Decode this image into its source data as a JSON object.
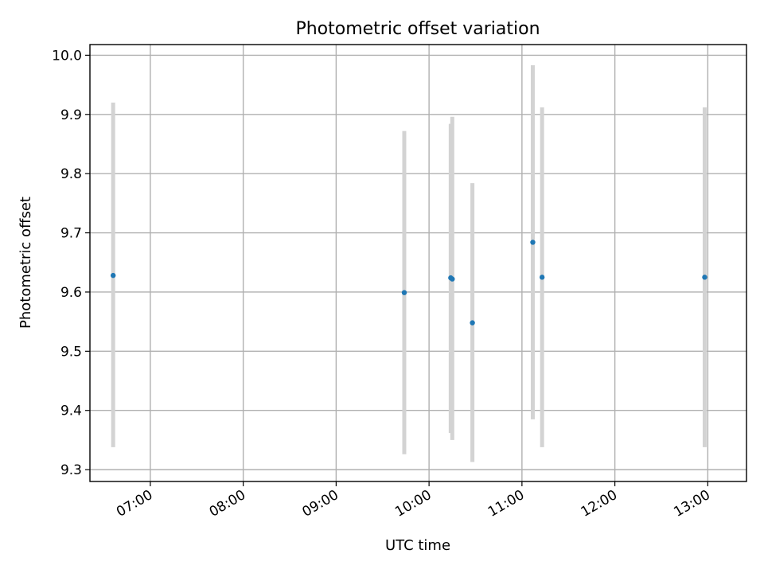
{
  "chart_data": {
    "type": "scatter",
    "title": "Photometric offset variation",
    "xlabel": "UTC time",
    "ylabel": "Photometric offset",
    "x_axis_kind": "time",
    "xlim": [
      "06:21",
      "13:25"
    ],
    "ylim": [
      9.28,
      10.018
    ],
    "grid": true,
    "x_ticks": [
      "07:00",
      "08:00",
      "09:00",
      "10:00",
      "11:00",
      "12:00",
      "13:00"
    ],
    "y_ticks": [
      9.3,
      9.4,
      9.5,
      9.6,
      9.7,
      9.8,
      9.9,
      10.0
    ],
    "colors": {
      "point": "#1f77b4",
      "error_bar": "#d3d3d3"
    },
    "series": [
      {
        "points": [
          {
            "x": "06:36",
            "y": 9.628,
            "y_low": 9.338,
            "y_high": 9.92
          },
          {
            "x": "09:44",
            "y": 9.599,
            "y_low": 9.326,
            "y_high": 9.872
          },
          {
            "x": "10:14",
            "y": 9.624,
            "y_low": 9.362,
            "y_high": 9.884
          },
          {
            "x": "10:15",
            "y": 9.622,
            "y_low": 9.35,
            "y_high": 9.896
          },
          {
            "x": "10:28",
            "y": 9.548,
            "y_low": 9.313,
            "y_high": 9.784
          },
          {
            "x": "11:07",
            "y": 9.684,
            "y_low": 9.385,
            "y_high": 9.983
          },
          {
            "x": "11:13",
            "y": 9.625,
            "y_low": 9.338,
            "y_high": 9.912
          },
          {
            "x": "12:58",
            "y": 9.625,
            "y_low": 9.338,
            "y_high": 9.912
          }
        ]
      }
    ]
  }
}
